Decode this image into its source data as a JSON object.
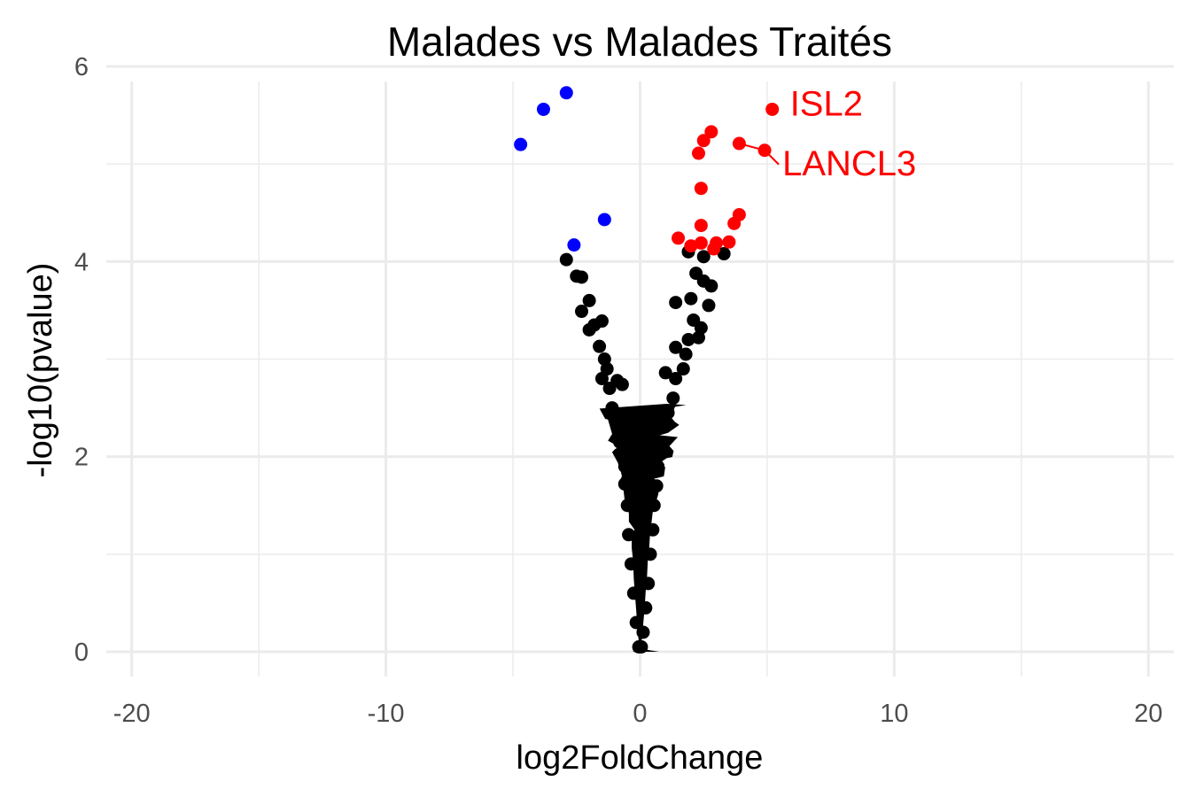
{
  "chart_data": {
    "type": "scatter",
    "title": "Malades vs Malades Traités",
    "xlabel": "log2FoldChange",
    "ylabel": "-log10(pvalue)",
    "xlim": [
      -21,
      21
    ],
    "ylim": [
      0,
      6.1
    ],
    "x_ticks": [
      -20,
      -10,
      0,
      10,
      20
    ],
    "x_tick_labels": [
      "-20",
      "-10",
      "0",
      "10",
      "20"
    ],
    "y_ticks": [
      0,
      2,
      4,
      6
    ],
    "y_tick_labels": [
      "0",
      "2",
      "4",
      "6"
    ],
    "grid": true,
    "legend": "none",
    "colors": {
      "down": "#0000ff",
      "up": "#ff0000",
      "ns": "#000000",
      "grid": "#ebebeb"
    },
    "series": [
      {
        "color": "#0000ff",
        "points": [
          [
            -4.7,
            5.2
          ],
          [
            -3.8,
            5.56
          ],
          [
            -2.9,
            5.73
          ],
          [
            -1.4,
            4.43
          ],
          [
            -2.6,
            4.17
          ]
        ]
      },
      {
        "color": "#ff0000",
        "points": [
          [
            5.2,
            5.56
          ],
          [
            4.9,
            5.14
          ],
          [
            3.9,
            5.21
          ],
          [
            2.8,
            5.33
          ],
          [
            2.5,
            5.24
          ],
          [
            2.3,
            5.11
          ],
          [
            2.4,
            4.75
          ],
          [
            3.9,
            4.48
          ],
          [
            3.7,
            4.39
          ],
          [
            2.4,
            4.37
          ],
          [
            1.5,
            4.24
          ],
          [
            2.0,
            4.16
          ],
          [
            2.4,
            4.19
          ],
          [
            3.0,
            4.19
          ],
          [
            3.5,
            4.2
          ],
          [
            2.9,
            4.13
          ]
        ]
      },
      {
        "color": "#000000",
        "points": [
          [
            -2.9,
            4.02
          ],
          [
            -2.5,
            3.85
          ],
          [
            -2.3,
            3.84
          ],
          [
            -2.0,
            3.6
          ],
          [
            -2.3,
            3.49
          ],
          [
            -1.5,
            3.39
          ],
          [
            -2.0,
            3.3
          ],
          [
            -1.8,
            3.35
          ],
          [
            -1.6,
            3.13
          ],
          [
            -1.4,
            3.0
          ],
          [
            -1.3,
            2.9
          ],
          [
            -1.5,
            2.8
          ],
          [
            -1.2,
            2.7
          ],
          [
            -0.9,
            2.78
          ],
          [
            -0.7,
            2.74
          ],
          [
            -1.1,
            2.5
          ],
          [
            -0.9,
            2.4
          ],
          [
            -0.8,
            2.28
          ],
          [
            -0.8,
            2.15
          ],
          [
            -0.4,
            2.02
          ],
          [
            -0.6,
            1.9
          ],
          [
            -0.6,
            1.72
          ],
          [
            -0.5,
            1.5
          ],
          [
            -0.45,
            1.2
          ],
          [
            -0.35,
            0.9
          ],
          [
            -0.25,
            0.6
          ],
          [
            -0.15,
            0.3
          ],
          [
            -0.05,
            0.05
          ],
          [
            1.9,
            4.1
          ],
          [
            2.5,
            4.05
          ],
          [
            3.3,
            4.08
          ],
          [
            2.2,
            3.88
          ],
          [
            2.5,
            3.8
          ],
          [
            2.8,
            3.75
          ],
          [
            1.4,
            3.58
          ],
          [
            2.0,
            3.62
          ],
          [
            2.7,
            3.55
          ],
          [
            2.1,
            3.4
          ],
          [
            2.4,
            3.32
          ],
          [
            1.9,
            3.2
          ],
          [
            2.3,
            3.22
          ],
          [
            1.4,
            3.12
          ],
          [
            1.8,
            3.05
          ],
          [
            1.7,
            2.9
          ],
          [
            1.4,
            2.8
          ],
          [
            1.0,
            2.86
          ],
          [
            1.3,
            2.6
          ],
          [
            1.1,
            2.45
          ],
          [
            0.9,
            2.3
          ],
          [
            0.8,
            2.1
          ],
          [
            0.7,
            1.9
          ],
          [
            0.65,
            1.7
          ],
          [
            0.55,
            1.5
          ],
          [
            0.5,
            1.25
          ],
          [
            0.4,
            1.0
          ],
          [
            0.32,
            0.7
          ],
          [
            0.22,
            0.45
          ],
          [
            0.12,
            0.2
          ],
          [
            0.05,
            0.05
          ]
        ]
      }
    ],
    "annotations": [
      {
        "text": "ISL2",
        "x": 5.2,
        "y": 5.56,
        "color": "#ff0000"
      },
      {
        "text": "LANCL3",
        "x": 4.9,
        "y": 5.14,
        "color": "#ff0000"
      }
    ]
  }
}
